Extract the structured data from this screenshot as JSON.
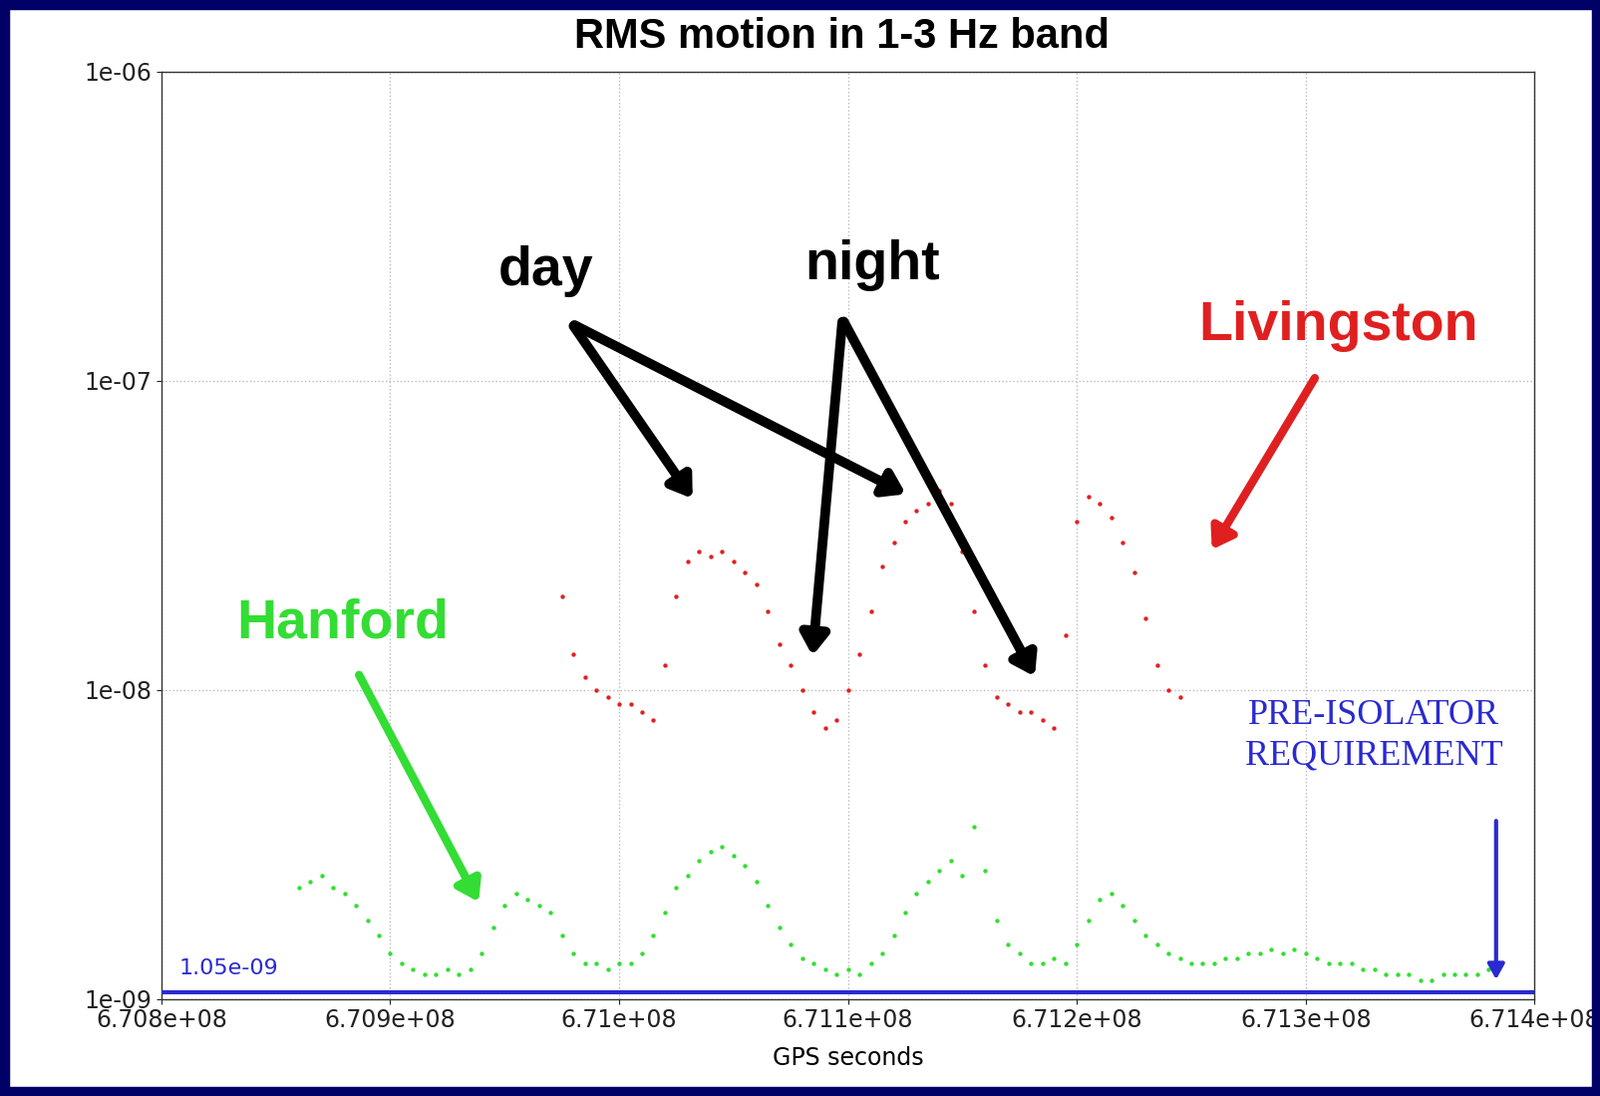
{
  "chart_data": {
    "type": "scatter",
    "title": "RMS motion in 1-3 Hz band",
    "x_label": "GPS seconds",
    "log": "y",
    "grid": true,
    "xlim": [
      670800000,
      671400000
    ],
    "xticks": [
      {
        "value": 670800000,
        "label": "6.708e+08"
      },
      {
        "value": 670900000,
        "label": "6.709e+08"
      },
      {
        "value": 671000000,
        "label": "6.71e+08"
      },
      {
        "value": 671100000,
        "label": "6.711e+08"
      },
      {
        "value": 671200000,
        "label": "6.712e+08"
      },
      {
        "value": 671300000,
        "label": "6.713e+08"
      },
      {
        "value": 671400000,
        "label": "6.714e+08"
      }
    ],
    "ylim": [
      1e-09,
      1e-06
    ],
    "yticks": [
      {
        "value": 1e-09,
        "label": "1e-09"
      },
      {
        "value": 1e-08,
        "label": "1e-08"
      },
      {
        "value": 1e-07,
        "label": "1e-07"
      },
      {
        "value": 1e-06,
        "label": "1e-06"
      }
    ],
    "series": [
      {
        "name": "Livingston",
        "color": "#e02020",
        "marker": "dot",
        "x": [
          670975000,
          670980000,
          670985000,
          670990000,
          670995000,
          671000000,
          671005000,
          671010000,
          671015000,
          671020000,
          671025000,
          671030000,
          671035000,
          671040000,
          671045000,
          671050000,
          671055000,
          671060000,
          671065000,
          671070000,
          671075000,
          671080000,
          671085000,
          671090000,
          671095000,
          671100000,
          671105000,
          671110000,
          671115000,
          671120000,
          671125000,
          671130000,
          671135000,
          671140000,
          671145000,
          671150000,
          671155000,
          671160000,
          671165000,
          671170000,
          671175000,
          671180000,
          671185000,
          671190000,
          671195000,
          671200000,
          671205000,
          671210000,
          671215000,
          671220000,
          671225000,
          671230000,
          671235000,
          671240000,
          671245000
        ],
        "values": [
          2e-08,
          1.3e-08,
          1.1e-08,
          1e-08,
          9.5e-09,
          9e-09,
          9e-09,
          8.5e-09,
          8e-09,
          1.2e-08,
          2e-08,
          2.6e-08,
          2.8e-08,
          2.7e-08,
          2.8e-08,
          2.6e-08,
          2.4e-08,
          2.2e-08,
          1.8e-08,
          1.4e-08,
          1.2e-08,
          1e-08,
          8.5e-09,
          7.5e-09,
          8e-09,
          1e-08,
          1.3e-08,
          1.8e-08,
          2.5e-08,
          3e-08,
          3.5e-08,
          3.8e-08,
          4e-08,
          4.4e-08,
          4e-08,
          2.8e-08,
          1.8e-08,
          1.2e-08,
          9.5e-09,
          9e-09,
          8.5e-09,
          8.5e-09,
          8e-09,
          7.5e-09,
          1.5e-08,
          3.5e-08,
          4.2e-08,
          4e-08,
          3.6e-08,
          3e-08,
          2.4e-08,
          1.7e-08,
          1.2e-08,
          1e-08,
          9.5e-09
        ]
      },
      {
        "name": "Hanford",
        "color": "#33dd33",
        "marker": "dot",
        "x": [
          670860000,
          670865000,
          670870000,
          670875000,
          670880000,
          670885000,
          670890000,
          670895000,
          670900000,
          670905000,
          670910000,
          670915000,
          670920000,
          670925000,
          670930000,
          670935000,
          670940000,
          670945000,
          670950000,
          670955000,
          670960000,
          670965000,
          670970000,
          670975000,
          670980000,
          670985000,
          670990000,
          670995000,
          671000000,
          671005000,
          671010000,
          671015000,
          671020000,
          671025000,
          671030000,
          671035000,
          671040000,
          671045000,
          671050000,
          671055000,
          671060000,
          671065000,
          671070000,
          671075000,
          671080000,
          671085000,
          671090000,
          671095000,
          671100000,
          671105000,
          671110000,
          671115000,
          671120000,
          671125000,
          671130000,
          671135000,
          671140000,
          671145000,
          671150000,
          671155000,
          671160000,
          671165000,
          671170000,
          671175000,
          671180000,
          671185000,
          671190000,
          671195000,
          671200000,
          671205000,
          671210000,
          671215000,
          671220000,
          671225000,
          671230000,
          671235000,
          671240000,
          671245000,
          671250000,
          671255000,
          671260000,
          671265000,
          671270000,
          671275000,
          671280000,
          671285000,
          671290000,
          671295000,
          671300000,
          671305000,
          671310000,
          671315000,
          671320000,
          671325000,
          671330000,
          671335000,
          671340000,
          671345000,
          671350000,
          671355000,
          671360000,
          671365000,
          671370000,
          671375000,
          671380000
        ],
        "values": [
          2.3e-09,
          2.4e-09,
          2.5e-09,
          2.3e-09,
          2.2e-09,
          2e-09,
          1.8e-09,
          1.6e-09,
          1.4e-09,
          1.3e-09,
          1.25e-09,
          1.2e-09,
          1.2e-09,
          1.25e-09,
          1.2e-09,
          1.25e-09,
          1.4e-09,
          1.7e-09,
          2e-09,
          2.2e-09,
          2.1e-09,
          2e-09,
          1.9e-09,
          1.6e-09,
          1.4e-09,
          1.3e-09,
          1.3e-09,
          1.25e-09,
          1.3e-09,
          1.3e-09,
          1.4e-09,
          1.6e-09,
          1.9e-09,
          2.3e-09,
          2.5e-09,
          2.8e-09,
          3e-09,
          3.1e-09,
          2.9e-09,
          2.7e-09,
          2.4e-09,
          2e-09,
          1.7e-09,
          1.5e-09,
          1.35e-09,
          1.3e-09,
          1.25e-09,
          1.2e-09,
          1.25e-09,
          1.2e-09,
          1.3e-09,
          1.4e-09,
          1.6e-09,
          1.9e-09,
          2.2e-09,
          2.4e-09,
          2.6e-09,
          2.8e-09,
          2.5e-09,
          3.6e-09,
          2.6e-09,
          1.8e-09,
          1.5e-09,
          1.4e-09,
          1.3e-09,
          1.3e-09,
          1.35e-09,
          1.3e-09,
          1.5e-09,
          1.8e-09,
          2.1e-09,
          2.2e-09,
          2e-09,
          1.8e-09,
          1.6e-09,
          1.5e-09,
          1.4e-09,
          1.35e-09,
          1.3e-09,
          1.3e-09,
          1.3e-09,
          1.35e-09,
          1.35e-09,
          1.4e-09,
          1.4e-09,
          1.45e-09,
          1.4e-09,
          1.45e-09,
          1.4e-09,
          1.35e-09,
          1.3e-09,
          1.3e-09,
          1.3e-09,
          1.25e-09,
          1.25e-09,
          1.2e-09,
          1.2e-09,
          1.2e-09,
          1.15e-09,
          1.15e-09,
          1.2e-09,
          1.2e-09,
          1.2e-09,
          1.2e-09,
          1.25e-09
        ]
      }
    ],
    "reference_line": {
      "value": 1.05e-09,
      "label": "1.05e-09",
      "name": "PRE-ISOLATOR\nREQUIREMENT",
      "color": "#2a2ad0"
    },
    "annotations": [
      {
        "text": "day",
        "color": "#000000"
      },
      {
        "text": "night",
        "color": "#000000"
      }
    ]
  }
}
